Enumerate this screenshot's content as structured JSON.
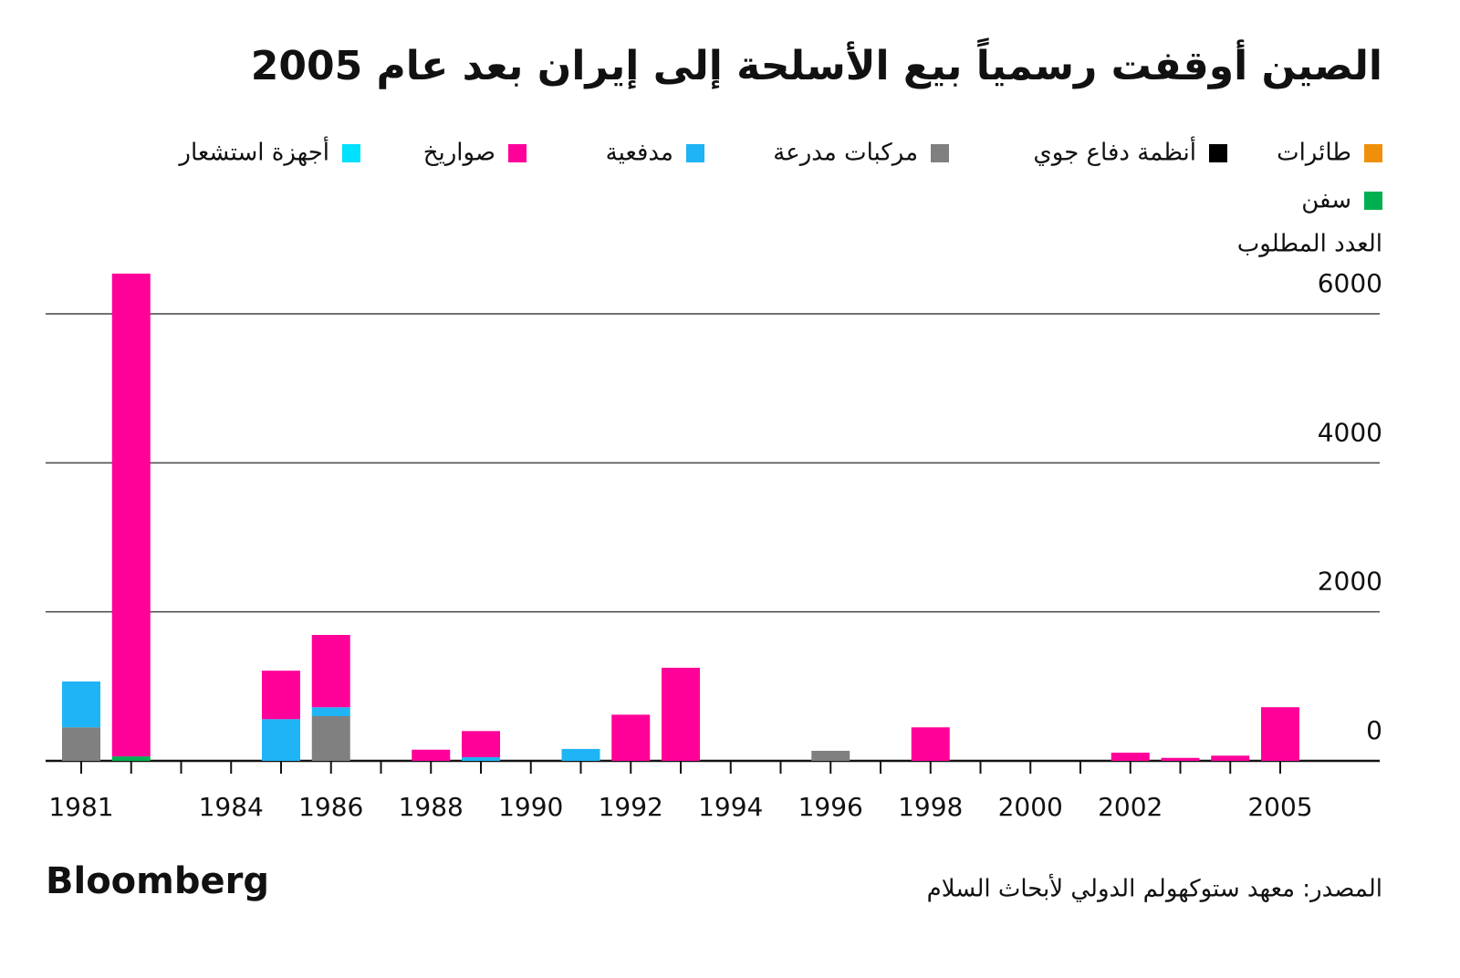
{
  "chart_data": {
    "type": "stacked-bar",
    "title": "الصين أوقفت رسمياً بيع الأسلحة إلى إيران بعد عام 2005",
    "y_label": "العدد المطلوب",
    "source": "المصدر: معهد ستوكهولم الدولي لأبحاث السلام",
    "brand": "Bloomberg",
    "categories": [
      "1981",
      null,
      null,
      "1984",
      null,
      "1986",
      null,
      "1988",
      null,
      "1990",
      null,
      "1992",
      null,
      "1994",
      null,
      "1996",
      null,
      "1998",
      null,
      "2000",
      null,
      "2002",
      null,
      null,
      "2005"
    ],
    "series": [
      {
        "name": "طائرات",
        "color": "#f0900a",
        "values": [
          0,
          0,
          0,
          0,
          0,
          0,
          0,
          0,
          0,
          0,
          0,
          0,
          0,
          0,
          0,
          0,
          0,
          0,
          0,
          0,
          0,
          0,
          0,
          0,
          0
        ]
      },
      {
        "name": "أنظمة دفاع جوي",
        "color": "#000000",
        "values": [
          0,
          0,
          0,
          0,
          0,
          0,
          0,
          0,
          0,
          0,
          0,
          0,
          0,
          0,
          0,
          0,
          0,
          0,
          0,
          0,
          0,
          0,
          0,
          0,
          0
        ]
      },
      {
        "name": "مركبات مدرعة",
        "color": "#808080",
        "values": [
          450,
          0,
          0,
          0,
          0,
          600,
          0,
          0,
          0,
          0,
          0,
          0,
          0,
          0,
          0,
          135,
          0,
          0,
          0,
          0,
          0,
          0,
          0,
          0,
          0
        ]
      },
      {
        "name": "مدفعية",
        "color": "#1fb4f5",
        "values": [
          615,
          0,
          0,
          0,
          560,
          120,
          0,
          0,
          50,
          0,
          160,
          0,
          0,
          0,
          0,
          0,
          0,
          0,
          0,
          0,
          0,
          0,
          0,
          0,
          0
        ]
      },
      {
        "name": "صواريخ",
        "color": "#ff0099",
        "values": [
          0,
          6480,
          0,
          0,
          650,
          970,
          0,
          150,
          350,
          0,
          0,
          620,
          1250,
          0,
          0,
          0,
          0,
          450,
          0,
          0,
          0,
          110,
          40,
          70,
          720
        ]
      },
      {
        "name": "أجهزة استشعار",
        "color": "#00e0ff",
        "values": [
          0,
          0,
          0,
          0,
          0,
          0,
          0,
          0,
          0,
          0,
          0,
          0,
          0,
          0,
          0,
          0,
          0,
          0,
          0,
          0,
          0,
          0,
          0,
          0,
          0
        ]
      },
      {
        "name": "سفن",
        "color": "#00b050",
        "values": [
          0,
          60,
          0,
          0,
          0,
          0,
          0,
          0,
          0,
          0,
          0,
          0,
          0,
          0,
          0,
          0,
          0,
          0,
          0,
          0,
          0,
          0,
          0,
          0,
          0
        ]
      }
    ],
    "ylim": [
      0,
      6600
    ],
    "yticks": [
      0,
      2000,
      4000,
      6000
    ],
    "grid": true
  }
}
